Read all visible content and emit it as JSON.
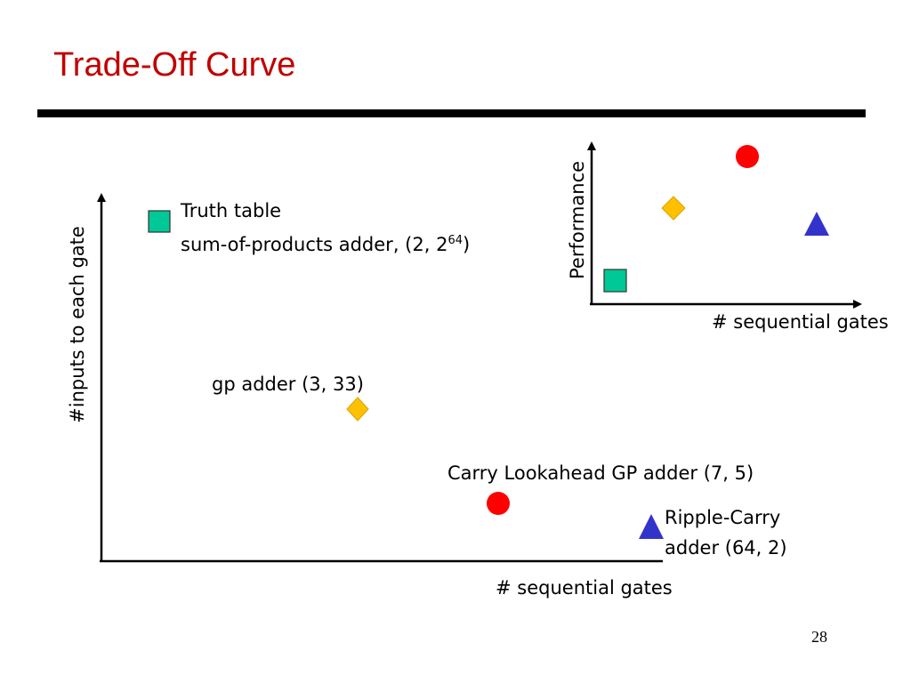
{
  "slide": {
    "title": "Trade-Off Curve",
    "page_number": "28"
  },
  "main_plot": {
    "x_axis_label": "# sequential gates",
    "y_axis_label": "#inputs to each gate",
    "points": [
      {
        "name": "truth-table",
        "label_line1": "Truth table",
        "label_line2_main": "sum-of-products adder, (2, 2",
        "label_line2_sup": "64",
        "label_line2_end": ")",
        "marker": "square",
        "color": "#00c896"
      },
      {
        "name": "gp-adder",
        "label": "gp adder (3, 33)",
        "marker": "diamond",
        "color": "#ffc000"
      },
      {
        "name": "carry-lookahead",
        "label": "Carry Lookahead GP adder (7, 5)",
        "marker": "circle",
        "color": "#ff0000"
      },
      {
        "name": "ripple-carry",
        "label_line1": "Ripple-Carry",
        "label_line2": "adder (64, 2)",
        "marker": "triangle",
        "color": "#3333cc"
      }
    ]
  },
  "inset_plot": {
    "x_axis_label": "# sequential gates",
    "y_axis_label": "Performance"
  },
  "colors": {
    "title": "#c00000",
    "rule": "#000000",
    "square": "#00c896",
    "diamond": "#ffc000",
    "circle": "#ff0000",
    "triangle": "#3333cc"
  }
}
